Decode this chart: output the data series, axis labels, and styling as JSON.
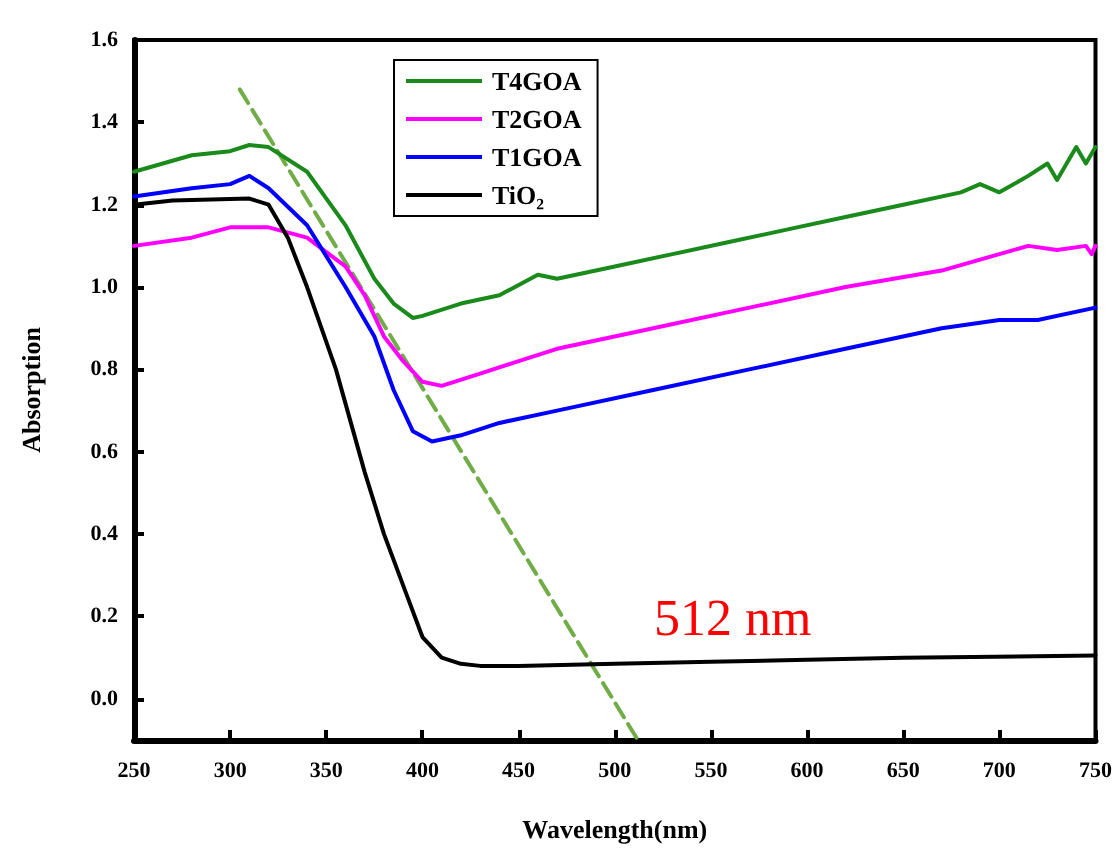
{
  "chart_data": {
    "type": "line",
    "xlabel": "Wavelength(nm)",
    "ylabel": "Absorption",
    "xlim": [
      250,
      750
    ],
    "xticks": [
      250,
      300,
      350,
      400,
      450,
      500,
      550,
      600,
      650,
      700,
      750
    ],
    "ylim": [
      -0.1,
      1.6
    ],
    "yticks": [
      {
        "value": 0,
        "label": "0.0"
      },
      0.2,
      0.4,
      0.6,
      0.8,
      {
        "value": 1,
        "label": "1.0"
      },
      1.2,
      1.4,
      1.6
    ],
    "grid": false,
    "legend": "top",
    "line_style": "solid",
    "marker": "none",
    "annotations": [
      "512 nm"
    ],
    "series": [
      {
        "name": "T4GOA",
        "color": "#1a8a1a",
        "x": [
          250,
          280,
          300,
          310,
          320,
          340,
          360,
          375,
          385,
          395,
          400,
          420,
          440,
          460,
          470,
          500,
          530,
          560,
          590,
          620,
          650,
          680,
          690,
          700,
          715,
          725,
          730,
          740,
          745,
          750
        ],
        "values": [
          1.28,
          1.32,
          1.33,
          1.345,
          1.34,
          1.28,
          1.15,
          1.02,
          0.96,
          0.925,
          0.93,
          0.96,
          0.98,
          1.03,
          1.02,
          1.05,
          1.08,
          1.11,
          1.14,
          1.17,
          1.2,
          1.23,
          1.25,
          1.23,
          1.27,
          1.3,
          1.26,
          1.34,
          1.3,
          1.34
        ]
      },
      {
        "name": "T2GOA",
        "color": "#ff00ff",
        "x": [
          250,
          280,
          300,
          320,
          340,
          360,
          370,
          380,
          390,
          400,
          410,
          430,
          450,
          470,
          520,
          570,
          620,
          670,
          700,
          715,
          730,
          745,
          748,
          750
        ],
        "values": [
          1.1,
          1.12,
          1.145,
          1.145,
          1.12,
          1.05,
          0.98,
          0.88,
          0.82,
          0.77,
          0.76,
          0.79,
          0.82,
          0.85,
          0.9,
          0.95,
          1.0,
          1.04,
          1.08,
          1.1,
          1.09,
          1.1,
          1.08,
          1.1
        ]
      },
      {
        "name": "T1GOA",
        "color": "#0000ff",
        "x": [
          250,
          280,
          300,
          310,
          320,
          340,
          360,
          375,
          385,
          395,
          405,
          420,
          440,
          470,
          520,
          570,
          620,
          670,
          700,
          720,
          750
        ],
        "values": [
          1.22,
          1.24,
          1.25,
          1.27,
          1.24,
          1.15,
          1.0,
          0.88,
          0.75,
          0.65,
          0.625,
          0.64,
          0.67,
          0.7,
          0.75,
          0.8,
          0.85,
          0.9,
          0.92,
          0.92,
          0.95
        ]
      },
      {
        "name": "TiO₂",
        "color": "#000000",
        "x": [
          250,
          270,
          310,
          320,
          330,
          340,
          355,
          370,
          380,
          392,
          400,
          410,
          420,
          430,
          450,
          500,
          550,
          600,
          650,
          750
        ],
        "values": [
          1.2,
          1.21,
          1.215,
          1.2,
          1.12,
          1.0,
          0.8,
          0.55,
          0.4,
          0.25,
          0.15,
          0.1,
          0.085,
          0.08,
          0.08,
          0.085,
          0.09,
          0.095,
          0.1,
          0.105
        ]
      },
      {
        "color": "#70ad47",
        "line_style": "dashed",
        "x": [
          305,
          512
        ],
        "values": [
          1.48,
          -0.1
        ]
      }
    ]
  }
}
